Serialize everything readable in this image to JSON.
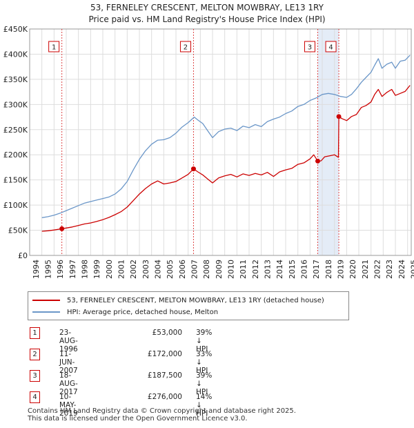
{
  "title_line1": "53, FERNELEY CRESCENT, MELTON MOWBRAY, LE13 1RY",
  "title_line2": "Price paid vs. HM Land Registry's House Price Index (HPI)",
  "chart_data": {
    "type": "line",
    "title": "53, FERNELEY CRESCENT, MELTON MOWBRAY, LE13 1RY — Price paid vs. HM Land Registry's House Price Index (HPI)",
    "xlabel": "",
    "ylabel": "",
    "xlim": [
      1995.0,
      2025.3
    ],
    "ylim": [
      0,
      450000
    ],
    "y_ticks": [
      0,
      50000,
      100000,
      150000,
      200000,
      250000,
      300000,
      350000,
      400000,
      450000
    ],
    "y_tick_labels": [
      "£0",
      "£50K",
      "£100K",
      "£150K",
      "£200K",
      "£250K",
      "£300K",
      "£350K",
      "£400K",
      "£450K"
    ],
    "x_ticks": [
      1994,
      1995,
      1996,
      1997,
      1998,
      1999,
      2000,
      2001,
      2002,
      2003,
      2004,
      2005,
      2006,
      2007,
      2008,
      2009,
      2010,
      2011,
      2012,
      2013,
      2014,
      2015,
      2016,
      2017,
      2018,
      2019,
      2020,
      2021,
      2022,
      2023,
      2024,
      2025
    ],
    "x_tick_labels": [
      "1994",
      "1995",
      "1996",
      "1997",
      "1998",
      "1999",
      "2000",
      "2001",
      "2002",
      "2003",
      "2004",
      "2005",
      "2006",
      "2007",
      "2008",
      "2009",
      "2010",
      "2011",
      "2012",
      "2013",
      "2014",
      "2015",
      "2016",
      "2017",
      "2018",
      "2019",
      "2020",
      "2021",
      "2022",
      "2023",
      "2024",
      "2025"
    ],
    "grid": true,
    "series": [
      {
        "name": "53, FERNELEY CRESCENT, MELTON MOWBRAY, LE13 1RY (detached house)",
        "color": "#cc0000",
        "x": [
          1995.0,
          1995.5,
          1996.0,
          1996.64,
          1997.0,
          1997.5,
          1998.0,
          1998.5,
          1999.0,
          1999.5,
          2000.0,
          2000.5,
          2001.0,
          2001.5,
          2002.0,
          2002.5,
          2003.0,
          2003.5,
          2004.0,
          2004.5,
          2005.0,
          2005.5,
          2006.0,
          2006.5,
          2007.0,
          2007.44,
          2007.8,
          2008.2,
          2008.6,
          2009.0,
          2009.5,
          2010.0,
          2010.5,
          2011.0,
          2011.5,
          2012.0,
          2012.5,
          2013.0,
          2013.5,
          2014.0,
          2014.5,
          2015.0,
          2015.5,
          2016.0,
          2016.5,
          2017.0,
          2017.3,
          2017.63,
          2017.9,
          2018.2,
          2018.6,
          2019.0,
          2019.33,
          2019.36,
          2019.6,
          2020.0,
          2020.4,
          2020.8,
          2021.2,
          2021.6,
          2022.0,
          2022.3,
          2022.6,
          2022.9,
          2023.3,
          2023.7,
          2024.0,
          2024.4,
          2024.8,
          2025.2
        ],
        "values": [
          48000,
          49000,
          50500,
          53000,
          54500,
          56500,
          59500,
          62500,
          64500,
          67500,
          71000,
          75500,
          81000,
          87000,
          96000,
          109000,
          122000,
          133000,
          142000,
          148000,
          142000,
          144000,
          147000,
          154000,
          161000,
          172000,
          166000,
          160000,
          152000,
          144000,
          154000,
          158000,
          161000,
          156000,
          162000,
          159000,
          163000,
          160000,
          165000,
          157000,
          166000,
          170000,
          173000,
          181000,
          184000,
          192000,
          200000,
          187500,
          188000,
          196000,
          198000,
          200000,
          195000,
          276000,
          272000,
          268000,
          276000,
          280000,
          294000,
          298000,
          305000,
          320000,
          330000,
          316000,
          324000,
          330000,
          318000,
          322000,
          326000,
          338000
        ]
      },
      {
        "name": "HPI: Average price, detached house, Melton",
        "color": "#6a96c8",
        "x": [
          1995.0,
          1995.5,
          1996.0,
          1996.5,
          1997.0,
          1997.5,
          1998.0,
          1998.5,
          1999.0,
          1999.5,
          2000.0,
          2000.5,
          2001.0,
          2001.5,
          2002.0,
          2002.5,
          2003.0,
          2003.5,
          2004.0,
          2004.5,
          2005.0,
          2005.5,
          2006.0,
          2006.5,
          2007.0,
          2007.5,
          2007.8,
          2008.2,
          2008.6,
          2009.0,
          2009.5,
          2010.0,
          2010.5,
          2011.0,
          2011.5,
          2012.0,
          2012.5,
          2013.0,
          2013.5,
          2014.0,
          2014.5,
          2015.0,
          2015.5,
          2016.0,
          2016.5,
          2017.0,
          2017.5,
          2018.0,
          2018.5,
          2019.0,
          2019.5,
          2020.0,
          2020.4,
          2020.8,
          2021.2,
          2021.6,
          2022.0,
          2022.3,
          2022.6,
          2022.9,
          2023.3,
          2023.7,
          2024.0,
          2024.4,
          2024.8,
          2025.2
        ],
        "values": [
          75000,
          77000,
          80000,
          84000,
          89000,
          94000,
          99000,
          104000,
          107000,
          110000,
          113000,
          116000,
          122000,
          132000,
          147000,
          170000,
          191000,
          208000,
          221000,
          229000,
          230000,
          234000,
          243000,
          255000,
          264000,
          275000,
          269000,
          262000,
          248000,
          234000,
          246000,
          251000,
          253000,
          248000,
          257000,
          254000,
          260000,
          256000,
          266000,
          271000,
          275000,
          282000,
          287000,
          296000,
          300000,
          308000,
          313000,
          320000,
          322000,
          320000,
          316000,
          314000,
          320000,
          331000,
          344000,
          354000,
          364000,
          378000,
          391000,
          372000,
          380000,
          384000,
          372000,
          386000,
          388000,
          398000
        ]
      }
    ],
    "sale_markers": [
      {
        "label": "1",
        "x": 1996.64,
        "value": 53000
      },
      {
        "label": "2",
        "x": 2007.44,
        "value": 172000
      },
      {
        "label": "3",
        "x": 2017.63,
        "value": 187500
      },
      {
        "label": "4",
        "x": 2019.36,
        "value": 276000
      }
    ],
    "shaded_spans": [
      [
        2017.63,
        2019.36
      ]
    ]
  },
  "legend": {
    "property_label": "53, FERNELEY CRESCENT, MELTON MOWBRAY, LE13 1RY (detached house)",
    "hpi_label": "HPI: Average price, detached house, Melton"
  },
  "colors": {
    "property": "#cc0000",
    "hpi": "#6a96c8",
    "grid": "#dddddd",
    "shade": "#e4ecf7"
  },
  "transactions": [
    {
      "num": "1",
      "date": "23-AUG-1996",
      "price": "£53,000",
      "hpi": "39% ↓ HPI"
    },
    {
      "num": "2",
      "date": "11-JUN-2007",
      "price": "£172,000",
      "hpi": "33% ↓ HPI"
    },
    {
      "num": "3",
      "date": "18-AUG-2017",
      "price": "£187,500",
      "hpi": "39% ↓ HPI"
    },
    {
      "num": "4",
      "date": "10-MAY-2019",
      "price": "£276,000",
      "hpi": "14% ↓ HPI"
    }
  ],
  "footer": {
    "line1": "Contains HM Land Registry data © Crown copyright and database right 2025.",
    "line2": "This data is licensed under the Open Government Licence v3.0."
  }
}
